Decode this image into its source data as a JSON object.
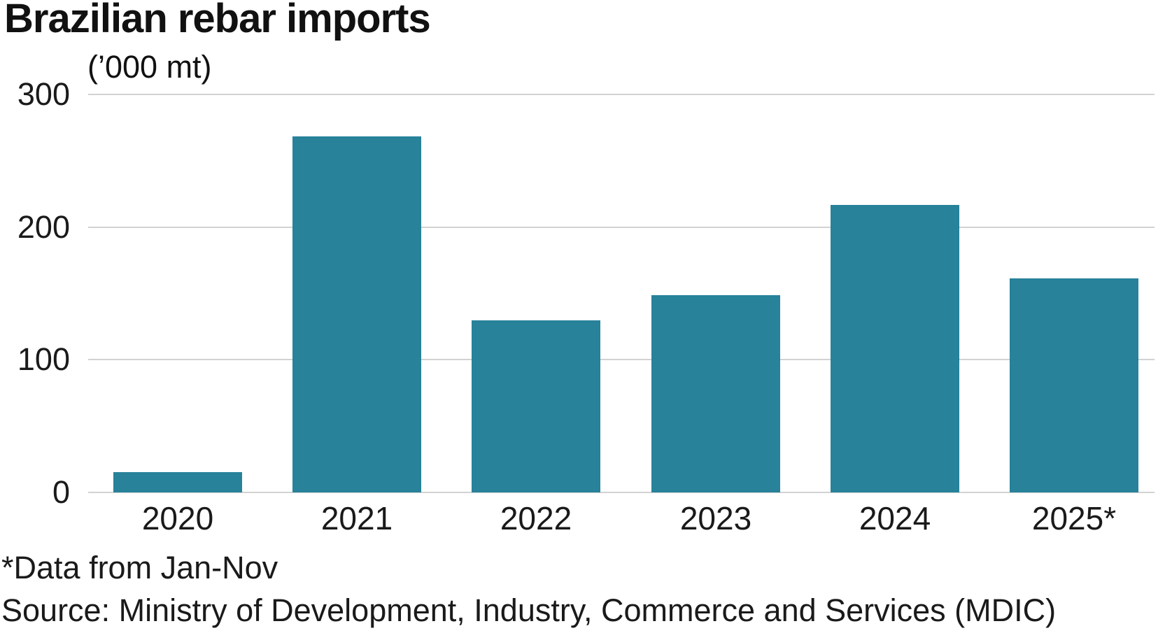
{
  "chart_data": {
    "type": "bar",
    "title": "Brazilian rebar imports",
    "unit_label": "(’000 mt)",
    "categories": [
      "2020",
      "2021",
      "2022",
      "2023",
      "2024",
      "2025*"
    ],
    "values": [
      15,
      268,
      129,
      148,
      216,
      161
    ],
    "ylim": [
      0,
      300
    ],
    "yticks": [
      0,
      100,
      200,
      300
    ],
    "grid": "horizontal",
    "legend": "none",
    "bar_color": "#27829a",
    "gridline_color": "#d2d2d2",
    "text_color": "#1a1a1a",
    "footnote": "*Data from Jan-Nov",
    "source": "Source: Ministry of Development, Industry, Commerce and Services (MDIC)"
  }
}
